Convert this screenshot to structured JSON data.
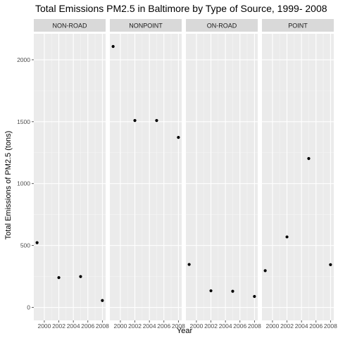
{
  "chart_data": {
    "type": "scatter",
    "title": "Total Emissions PM2.5 in Baltimore by Type of Source, 1999- 2008",
    "xlabel": "Year",
    "ylabel": "Total Emissions of PM2.5 (tons)",
    "x_ticks": [
      2000,
      2002,
      2004,
      2006,
      2008
    ],
    "y_ticks": [
      0,
      500,
      1000,
      1500,
      2000
    ],
    "xlim": [
      1998.55,
      2008.45
    ],
    "ylim": [
      -105,
      2210
    ],
    "grid": true,
    "facets": [
      {
        "name": "NON-ROAD",
        "x": [
          1999,
          2002,
          2005,
          2008
        ],
        "y": [
          522.9,
          240.8,
          248.9,
          55.8
        ]
      },
      {
        "name": "NONPOINT",
        "x": [
          1999,
          2002,
          2005,
          2008
        ],
        "y": [
          2107.6,
          1509.5,
          1509.5,
          1373.2
        ]
      },
      {
        "name": "ON-ROAD",
        "x": [
          1999,
          2002,
          2005,
          2008
        ],
        "y": [
          346.8,
          134.3,
          130.4,
          88.3
        ]
      },
      {
        "name": "POINT",
        "x": [
          1999,
          2002,
          2005,
          2008
        ],
        "y": [
          296.8,
          569.3,
          1202.5,
          345.0
        ]
      }
    ]
  },
  "colors": {
    "panel_background": "#ebebeb",
    "strip_background": "#d9d9d9",
    "grid_major": "#ffffff",
    "grid_minor": "#f5f5f5",
    "point": "#000000"
  }
}
